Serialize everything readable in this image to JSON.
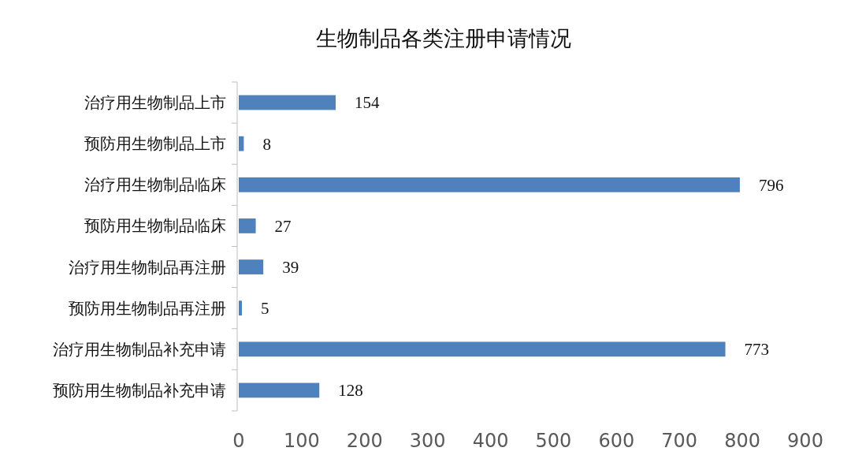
{
  "chart_data": {
    "type": "bar",
    "orientation": "horizontal",
    "title": "生物制品各类注册申请情况",
    "categories": [
      "治疗用生物制品上市",
      "预防用生物制品上市",
      "治疗用生物制品临床",
      "预防用生物制品临床",
      "治疗用生物制品再注册",
      "预防用生物制品再注册",
      "治疗用生物制品补充申请",
      "预防用生物制品补充申请"
    ],
    "values": [
      154,
      8,
      796,
      27,
      39,
      5,
      773,
      128
    ],
    "color": "#4f81bd",
    "data_labels": true,
    "xlim": [
      0,
      900
    ],
    "xticks": [
      0,
      100,
      200,
      300,
      400,
      500,
      600,
      700,
      800,
      900
    ]
  }
}
